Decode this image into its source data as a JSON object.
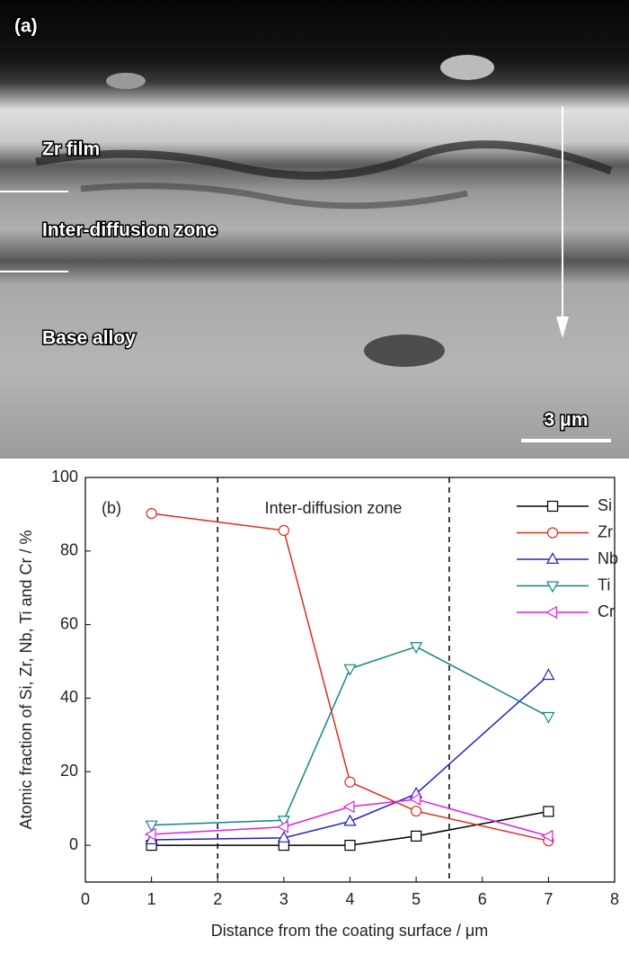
{
  "image": {
    "panel_label": "(a)",
    "labels": [
      "Zr film",
      "Inter-diffusion zone",
      "Base alloy"
    ],
    "scale_bar": "3 μm"
  },
  "chart_data": {
    "type": "line",
    "panel_label": "(b)",
    "annotation": "Inter-diffusion zone",
    "x_label": "Distance from the coating surface / μm",
    "y_label": "Atomic fraction of Si, Zr, Nb, Ti and Cr / %",
    "x": [
      1,
      3,
      4,
      5,
      7
    ],
    "series": [
      {
        "name": "Si",
        "color": "#000000",
        "marker": "square",
        "values": [
          0,
          0,
          0,
          2.5,
          9.2
        ]
      },
      {
        "name": "Zr",
        "color": "#e02a1a",
        "marker": "circle",
        "values": [
          90.2,
          85.6,
          17.2,
          9.3,
          1.2
        ]
      },
      {
        "name": "Nb",
        "color": "#2222c0",
        "marker": "triangle-up",
        "values": [
          1.5,
          2,
          6.5,
          14,
          46.2
        ]
      },
      {
        "name": "Ti",
        "color": "#138585",
        "marker": "triangle-down",
        "values": [
          5.5,
          6.8,
          48,
          54,
          35
        ]
      },
      {
        "name": "Cr",
        "color": "#e020e0",
        "marker": "triangle-left",
        "values": [
          3,
          5,
          10.5,
          12.5,
          2.5
        ]
      }
    ],
    "vlines": [
      2,
      5.5
    ],
    "xlim": [
      0,
      8
    ],
    "xticks": [
      0,
      1,
      2,
      3,
      4,
      5,
      6,
      7,
      8
    ],
    "ylim": [
      -10,
      100
    ],
    "yticks": [
      0,
      20,
      40,
      60,
      80,
      100
    ],
    "legend": "upper-right"
  }
}
